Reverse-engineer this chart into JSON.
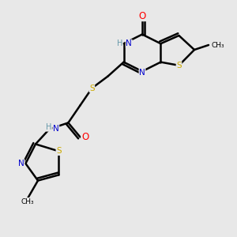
{
  "bg_color": "#e8e8e8",
  "atom_colors": {
    "C": "#000000",
    "N": "#0000cc",
    "O": "#ff0000",
    "S": "#ccaa00",
    "H": "#6699aa"
  },
  "bond_color": "#000000",
  "bond_width": 1.8
}
